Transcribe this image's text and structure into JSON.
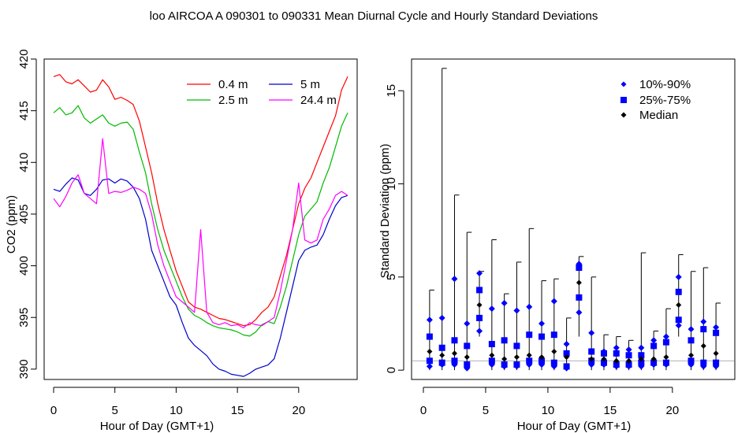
{
  "title": "loo   AIRCOA A   090301 to 090331   Mean Diurnal Cycle and Hourly Standard Deviations",
  "chart_data": [
    {
      "type": "line",
      "xlabel": "Hour of Day (GMT+1)",
      "ylabel": "CO2 (ppm)",
      "xlim": [
        0,
        24
      ],
      "ylim": [
        389,
        420
      ],
      "xticks": [
        0,
        5,
        10,
        15,
        20
      ],
      "yticks": [
        390,
        395,
        400,
        405,
        410,
        415,
        420
      ],
      "grid": false,
      "legend_position": "top-right",
      "x": [
        0,
        0.5,
        1,
        1.5,
        2,
        2.5,
        3,
        3.5,
        4,
        4.5,
        5,
        5.5,
        6,
        6.5,
        7,
        7.5,
        8,
        8.5,
        9,
        9.5,
        10,
        10.5,
        11,
        11.5,
        12,
        12.5,
        13,
        13.5,
        14,
        14.5,
        15,
        15.5,
        16,
        16.5,
        17,
        17.5,
        18,
        18.5,
        19,
        19.5,
        20,
        20.5,
        21,
        21.5,
        22,
        22.5,
        23,
        23.5,
        24
      ],
      "series": [
        {
          "name": "0.4 m",
          "color": "#ff0000",
          "values": [
            418.3,
            418.5,
            417.8,
            417.6,
            418.0,
            417.4,
            416.8,
            417.0,
            418.0,
            417.3,
            416.1,
            416.3,
            416.0,
            415.6,
            414.0,
            411.5,
            409.0,
            406.0,
            403.5,
            401.5,
            399.5,
            398.0,
            396.5,
            396.0,
            395.8,
            395.5,
            395.2,
            394.9,
            394.8,
            394.6,
            394.4,
            394.2,
            394.3,
            394.8,
            395.5,
            396.0,
            397.0,
            399.0,
            401.0,
            403.5,
            406.0,
            407.5,
            408.5,
            410.0,
            411.5,
            413.0,
            414.5,
            417.0,
            418.3
          ]
        },
        {
          "name": "2.5 m",
          "color": "#00bb00",
          "values": [
            414.8,
            415.3,
            414.6,
            414.8,
            415.5,
            414.3,
            413.8,
            414.2,
            414.6,
            413.8,
            413.5,
            413.8,
            413.9,
            413.2,
            411.0,
            409.0,
            406.0,
            403.5,
            401.5,
            400.0,
            398.5,
            397.0,
            395.8,
            395.2,
            394.9,
            394.5,
            394.2,
            394.0,
            393.9,
            393.8,
            393.6,
            393.3,
            393.2,
            393.6,
            394.3,
            394.6,
            394.4,
            396.0,
            398.0,
            400.5,
            403.0,
            404.8,
            405.5,
            406.2,
            408.0,
            409.5,
            411.5,
            413.5,
            414.8
          ]
        },
        {
          "name": "5 m",
          "color": "#0000cc",
          "values": [
            407.4,
            407.2,
            407.9,
            408.5,
            408.3,
            407.0,
            406.8,
            407.4,
            408.3,
            408.4,
            408.0,
            408.4,
            408.2,
            407.6,
            406.5,
            404.5,
            401.5,
            400.0,
            398.5,
            397.0,
            396.2,
            394.5,
            393.0,
            392.3,
            391.8,
            391.3,
            390.5,
            390.0,
            389.8,
            389.5,
            389.4,
            389.3,
            389.6,
            390.0,
            390.2,
            390.4,
            391.0,
            393.0,
            395.5,
            398.0,
            400.5,
            401.5,
            401.8,
            402.0,
            403.0,
            404.5,
            405.8,
            406.6,
            406.8
          ]
        },
        {
          "name": "24.4 m",
          "color": "#ff00ff",
          "values": [
            406.5,
            405.7,
            406.7,
            408.0,
            408.8,
            407.0,
            406.5,
            406.0,
            412.3,
            407.0,
            407.2,
            407.1,
            407.3,
            407.6,
            407.4,
            407.0,
            405.0,
            402.0,
            400.0,
            398.5,
            397.0,
            396.5,
            396.0,
            395.5,
            403.5,
            395.5,
            394.5,
            394.3,
            394.5,
            394.2,
            394.3,
            394.0,
            394.5,
            394.3,
            394.2,
            394.6,
            395.0,
            397.5,
            400.5,
            403.5,
            408.0,
            402.5,
            402.2,
            402.5,
            404.5,
            405.5,
            406.8,
            407.2,
            406.8
          ]
        }
      ]
    },
    {
      "type": "scatter",
      "xlabel": "Hour of Day (GMT+1)",
      "ylabel": "Standard Deviation (ppm)",
      "xlim": [
        0,
        24
      ],
      "ylim": [
        -0.5,
        16.7
      ],
      "xticks": [
        0,
        5,
        10,
        15,
        20
      ],
      "yticks": [
        0,
        5,
        10,
        15
      ],
      "grid": false,
      "legend_position": "top-right",
      "reference_line_y": 0.5,
      "x": [
        0.5,
        1.5,
        2.5,
        3.5,
        4.5,
        5.5,
        6.5,
        7.5,
        8.5,
        9.5,
        10.5,
        11.5,
        12.5,
        13.5,
        14.5,
        15.5,
        16.5,
        17.5,
        18.5,
        19.5,
        20.5,
        21.5,
        22.5,
        23.5
      ],
      "whisker_high": [
        4.3,
        16.2,
        9.4,
        7.4,
        5.3,
        7.0,
        4.1,
        5.8,
        7.6,
        4.8,
        4.9,
        2.8,
        6.1,
        5.0,
        1.9,
        1.8,
        1.6,
        6.3,
        2.1,
        3.3,
        6.2,
        5.3,
        5.5,
        3.6
      ],
      "whisker_low": [
        0.0,
        0.0,
        0.0,
        0.0,
        1.8,
        0.0,
        0.0,
        0.0,
        0.0,
        0.0,
        0.0,
        0.0,
        1.8,
        0.0,
        0.0,
        0.0,
        0.0,
        0.0,
        0.0,
        0.0,
        1.8,
        0.0,
        0.0,
        0.0
      ],
      "series": [
        {
          "name": "10%-90%",
          "marker": "diamond",
          "color": "#0000ff",
          "low": [
            0.2,
            0.3,
            0.3,
            0.1,
            2.1,
            0.3,
            0.2,
            0.2,
            0.3,
            0.3,
            0.2,
            0.1,
            3.1,
            0.3,
            0.3,
            0.2,
            0.2,
            0.2,
            0.3,
            0.3,
            2.4,
            0.3,
            0.2,
            0.2
          ],
          "high": [
            2.7,
            2.8,
            4.9,
            2.5,
            5.2,
            3.3,
            3.6,
            3.2,
            3.4,
            2.5,
            3.7,
            1.4,
            5.7,
            2.0,
            1.0,
            1.2,
            1.1,
            1.2,
            1.6,
            1.8,
            5.0,
            2.2,
            2.6,
            2.3
          ]
        },
        {
          "name": "25%-75%",
          "marker": "square",
          "color": "#0000ff",
          "low": [
            0.5,
            0.4,
            0.5,
            0.3,
            2.8,
            0.5,
            0.3,
            0.3,
            0.5,
            0.5,
            0.4,
            0.2,
            3.9,
            0.5,
            0.4,
            0.3,
            0.3,
            0.4,
            0.4,
            0.4,
            2.7,
            0.5,
            0.4,
            0.4
          ],
          "high": [
            1.8,
            1.2,
            1.6,
            1.3,
            4.3,
            1.4,
            1.6,
            1.3,
            1.9,
            1.8,
            1.9,
            0.9,
            5.5,
            1.0,
            0.9,
            0.9,
            0.8,
            0.8,
            1.3,
            1.5,
            4.2,
            1.6,
            2.2,
            2.0
          ]
        },
        {
          "name": "Median",
          "marker": "diamond",
          "color": "#000000",
          "values": [
            1.0,
            0.8,
            0.9,
            0.7,
            3.5,
            0.8,
            0.6,
            0.7,
            0.8,
            0.7,
            1.0,
            0.7,
            4.7,
            0.6,
            0.6,
            0.5,
            0.5,
            0.6,
            0.6,
            0.7,
            3.5,
            0.8,
            1.3,
            0.9
          ]
        }
      ]
    }
  ]
}
